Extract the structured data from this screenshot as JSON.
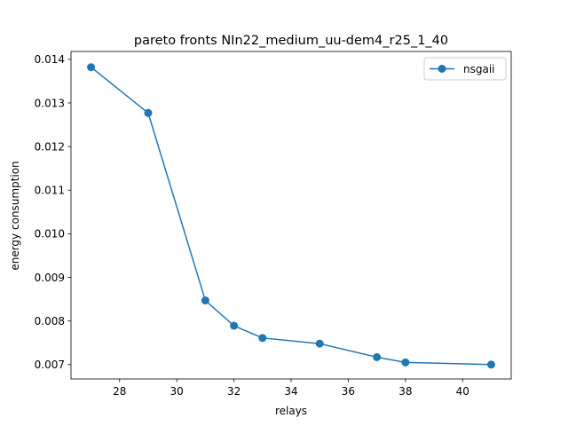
{
  "chart_data": {
    "type": "line",
    "title": "pareto fronts NIn22_medium_uu-dem4_r25_1_40",
    "xlabel": "relays",
    "ylabel": "energy consumption",
    "xlim": [
      26.3,
      41.7
    ],
    "ylim": [
      0.00667,
      0.01418
    ],
    "xticks": [
      28,
      30,
      32,
      34,
      36,
      38,
      40
    ],
    "xtick_labels": [
      "28",
      "30",
      "32",
      "34",
      "36",
      "38",
      "40"
    ],
    "yticks": [
      0.007,
      0.008,
      0.009,
      0.01,
      0.011,
      0.012,
      0.013,
      0.014
    ],
    "ytick_labels": [
      "0.007",
      "0.008",
      "0.009",
      "0.010",
      "0.011",
      "0.012",
      "0.013",
      "0.014"
    ],
    "grid": false,
    "legend_position": "top-right",
    "series": [
      {
        "name": "nsgaii",
        "color": "#1f77b4",
        "marker": "circle",
        "x": [
          27,
          29,
          31,
          32,
          33,
          35,
          37,
          38,
          41
        ],
        "y": [
          0.01382,
          0.01277,
          0.00847,
          0.00789,
          0.00761,
          0.00748,
          0.00717,
          0.00705,
          0.007
        ]
      }
    ]
  }
}
